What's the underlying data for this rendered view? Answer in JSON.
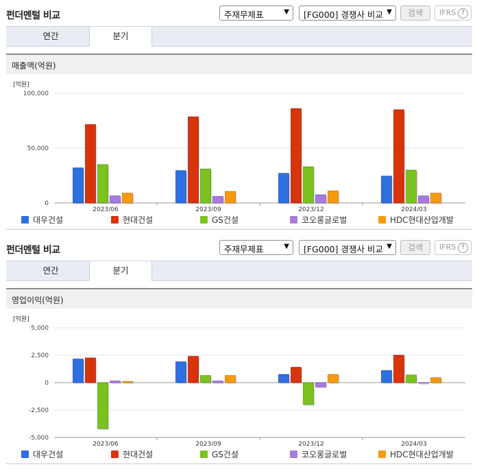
{
  "panel": {
    "title": "펀더멘털 비교",
    "select1": "주재무제표",
    "select2": "[FG000] 경쟁사 비교",
    "search_label": "검색",
    "ifrs_label": "IFRS",
    "help_glyph": "?",
    "tabs": [
      "연간",
      "분기"
    ],
    "active_tab": "분기"
  },
  "colors": {
    "대우건설": "#2f6fe0",
    "현대건설": "#d7340a",
    "GS건설": "#7cc21f",
    "코오롱글로벌": "#a97be0",
    "HDC현대산업개발": "#f89a0e"
  },
  "chart_data": [
    {
      "type": "bar",
      "title": "매출액(억원)",
      "unit_label": "[억원]",
      "categories": [
        "2023/06",
        "2023/09",
        "2023/12",
        "2024/03"
      ],
      "ylim": [
        0,
        100000
      ],
      "yticks": [
        0,
        50000,
        100000
      ],
      "ytick_labels": [
        "0",
        "50,000",
        "100,000"
      ],
      "series": [
        {
          "name": "대우건설",
          "values": [
            32000,
            29500,
            27000,
            24500
          ]
        },
        {
          "name": "현대건설",
          "values": [
            71500,
            78500,
            86000,
            85000
          ]
        },
        {
          "name": "GS건설",
          "values": [
            35000,
            31000,
            33000,
            30000
          ]
        },
        {
          "name": "코오롱글로벌",
          "values": [
            6500,
            6000,
            7500,
            6500
          ]
        },
        {
          "name": "HDC현대산업개발",
          "values": [
            9000,
            10500,
            11000,
            9000
          ]
        }
      ]
    },
    {
      "type": "bar",
      "title": "영업이익(억원)",
      "unit_label": "[억원]",
      "categories": [
        "2023/06",
        "2023/09",
        "2023/12",
        "2024/03"
      ],
      "ylim": [
        -5000,
        5000
      ],
      "yticks": [
        -5000,
        -2500,
        0,
        2500,
        5000
      ],
      "ytick_labels": [
        "-5,000",
        "-2,500",
        "0",
        "2,500",
        "5,000"
      ],
      "series": [
        {
          "name": "대우건설",
          "values": [
            2150,
            1900,
            750,
            1100
          ]
        },
        {
          "name": "현대건설",
          "values": [
            2250,
            2400,
            1400,
            2500
          ]
        },
        {
          "name": "GS건설",
          "values": [
            -4200,
            650,
            -2000,
            700
          ]
        },
        {
          "name": "코오롱글로벌",
          "values": [
            150,
            150,
            -400,
            -50
          ]
        },
        {
          "name": "HDC현대산업개발",
          "values": [
            100,
            650,
            750,
            450
          ]
        }
      ]
    }
  ]
}
